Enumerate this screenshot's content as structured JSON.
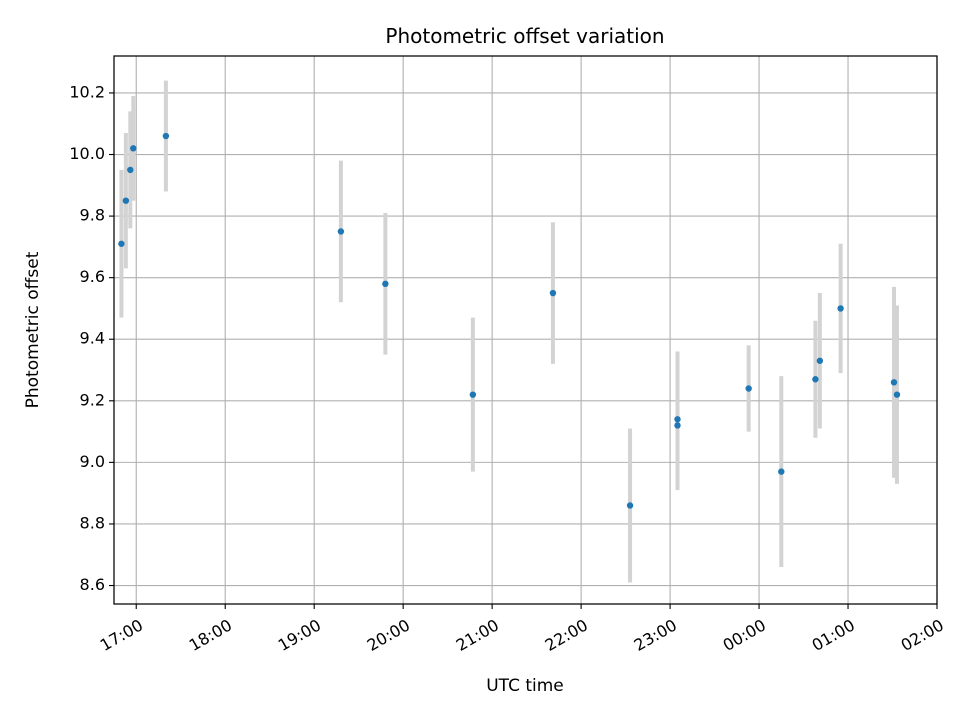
{
  "chart_data": {
    "type": "scatter",
    "title": "Photometric offset variation",
    "xlabel": "UTC time",
    "ylabel": "Photometric offset",
    "x_is_time": true,
    "xlim": [
      "16:45",
      "02:00"
    ],
    "ylim": [
      8.54,
      10.32
    ],
    "xticks": [
      "17:00",
      "18:00",
      "19:00",
      "20:00",
      "21:00",
      "22:00",
      "23:00",
      "00:00",
      "01:00",
      "02:00"
    ],
    "yticks": [
      "8.6",
      "8.8",
      "9.0",
      "9.2",
      "9.4",
      "9.6",
      "9.8",
      "10.0",
      "10.2"
    ],
    "grid": true,
    "colors": {
      "point": "#1f77b4",
      "errorbar": "#d3d3d3",
      "grid": "#b0b0b0"
    },
    "series": [
      {
        "points": [
          {
            "x": "16:50",
            "y": 9.71,
            "err": 0.24
          },
          {
            "x": "16:53",
            "y": 9.85,
            "err": 0.22
          },
          {
            "x": "16:56",
            "y": 9.95,
            "err": 0.19
          },
          {
            "x": "16:58",
            "y": 10.02,
            "err": 0.17
          },
          {
            "x": "17:20",
            "y": 10.06,
            "err": 0.18
          },
          {
            "x": "19:18",
            "y": 9.75,
            "err": 0.23
          },
          {
            "x": "19:48",
            "y": 9.58,
            "err": 0.23
          },
          {
            "x": "20:47",
            "y": 9.22,
            "err": 0.25
          },
          {
            "x": "21:41",
            "y": 9.55,
            "err": 0.23
          },
          {
            "x": "22:33",
            "y": 8.86,
            "err": 0.25
          },
          {
            "x": "23:05",
            "y": 9.14,
            "err": 0.22
          },
          {
            "x": "23:05",
            "y": 9.12,
            "err": 0.21
          },
          {
            "x": "23:53",
            "y": 9.24,
            "err": 0.14
          },
          {
            "x": "00:15",
            "y": 8.97,
            "err": 0.31
          },
          {
            "x": "00:38",
            "y": 9.27,
            "err": 0.19
          },
          {
            "x": "00:41",
            "y": 9.33,
            "err": 0.22
          },
          {
            "x": "00:55",
            "y": 9.5,
            "err": 0.21
          },
          {
            "x": "01:31",
            "y": 9.26,
            "err": 0.31
          },
          {
            "x": "01:33",
            "y": 9.22,
            "err": 0.29
          }
        ]
      }
    ]
  }
}
